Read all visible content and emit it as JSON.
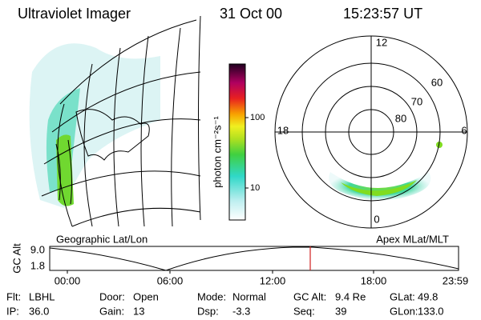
{
  "header": {
    "title": "Ultraviolet Imager",
    "date": "31 Oct 00",
    "time": "15:23:57 UT"
  },
  "colorbar": {
    "label": "photon cm⁻²s⁻¹",
    "ticks": [
      "100",
      "10"
    ]
  },
  "geo_map": {
    "label": "Geographic Lat/Lon"
  },
  "polar_map": {
    "label": "Apex MLat/MLT",
    "mlt_labels": [
      "12",
      "18",
      "6",
      "0"
    ],
    "lat_labels": [
      "60",
      "70",
      "80"
    ]
  },
  "altitude_plot": {
    "axis_label": "GC Alt",
    "yticks": [
      "9.0",
      "1.8"
    ],
    "xticks": [
      "00:00",
      "06:00",
      "12:00",
      "18:00",
      "23:59"
    ]
  },
  "footer": [
    [
      {
        "label": "Flt:",
        "value": "LBHL"
      },
      {
        "label": "Door:",
        "value": "Open"
      },
      {
        "label": "Mode:",
        "value": "Normal"
      },
      {
        "label": "GC Alt:",
        "value": "9.4 Re"
      },
      {
        "label": "GLat:",
        "value": "49.8"
      }
    ],
    [
      {
        "label": "IP:",
        "value": "36.0"
      },
      {
        "label": "Gain:",
        "value": "13"
      },
      {
        "label": "Dsp:",
        "value": "-3.3"
      },
      {
        "label": "Seq:",
        "value": "39"
      },
      {
        "label": "GLon:",
        "value": "133.0"
      }
    ]
  ]
}
